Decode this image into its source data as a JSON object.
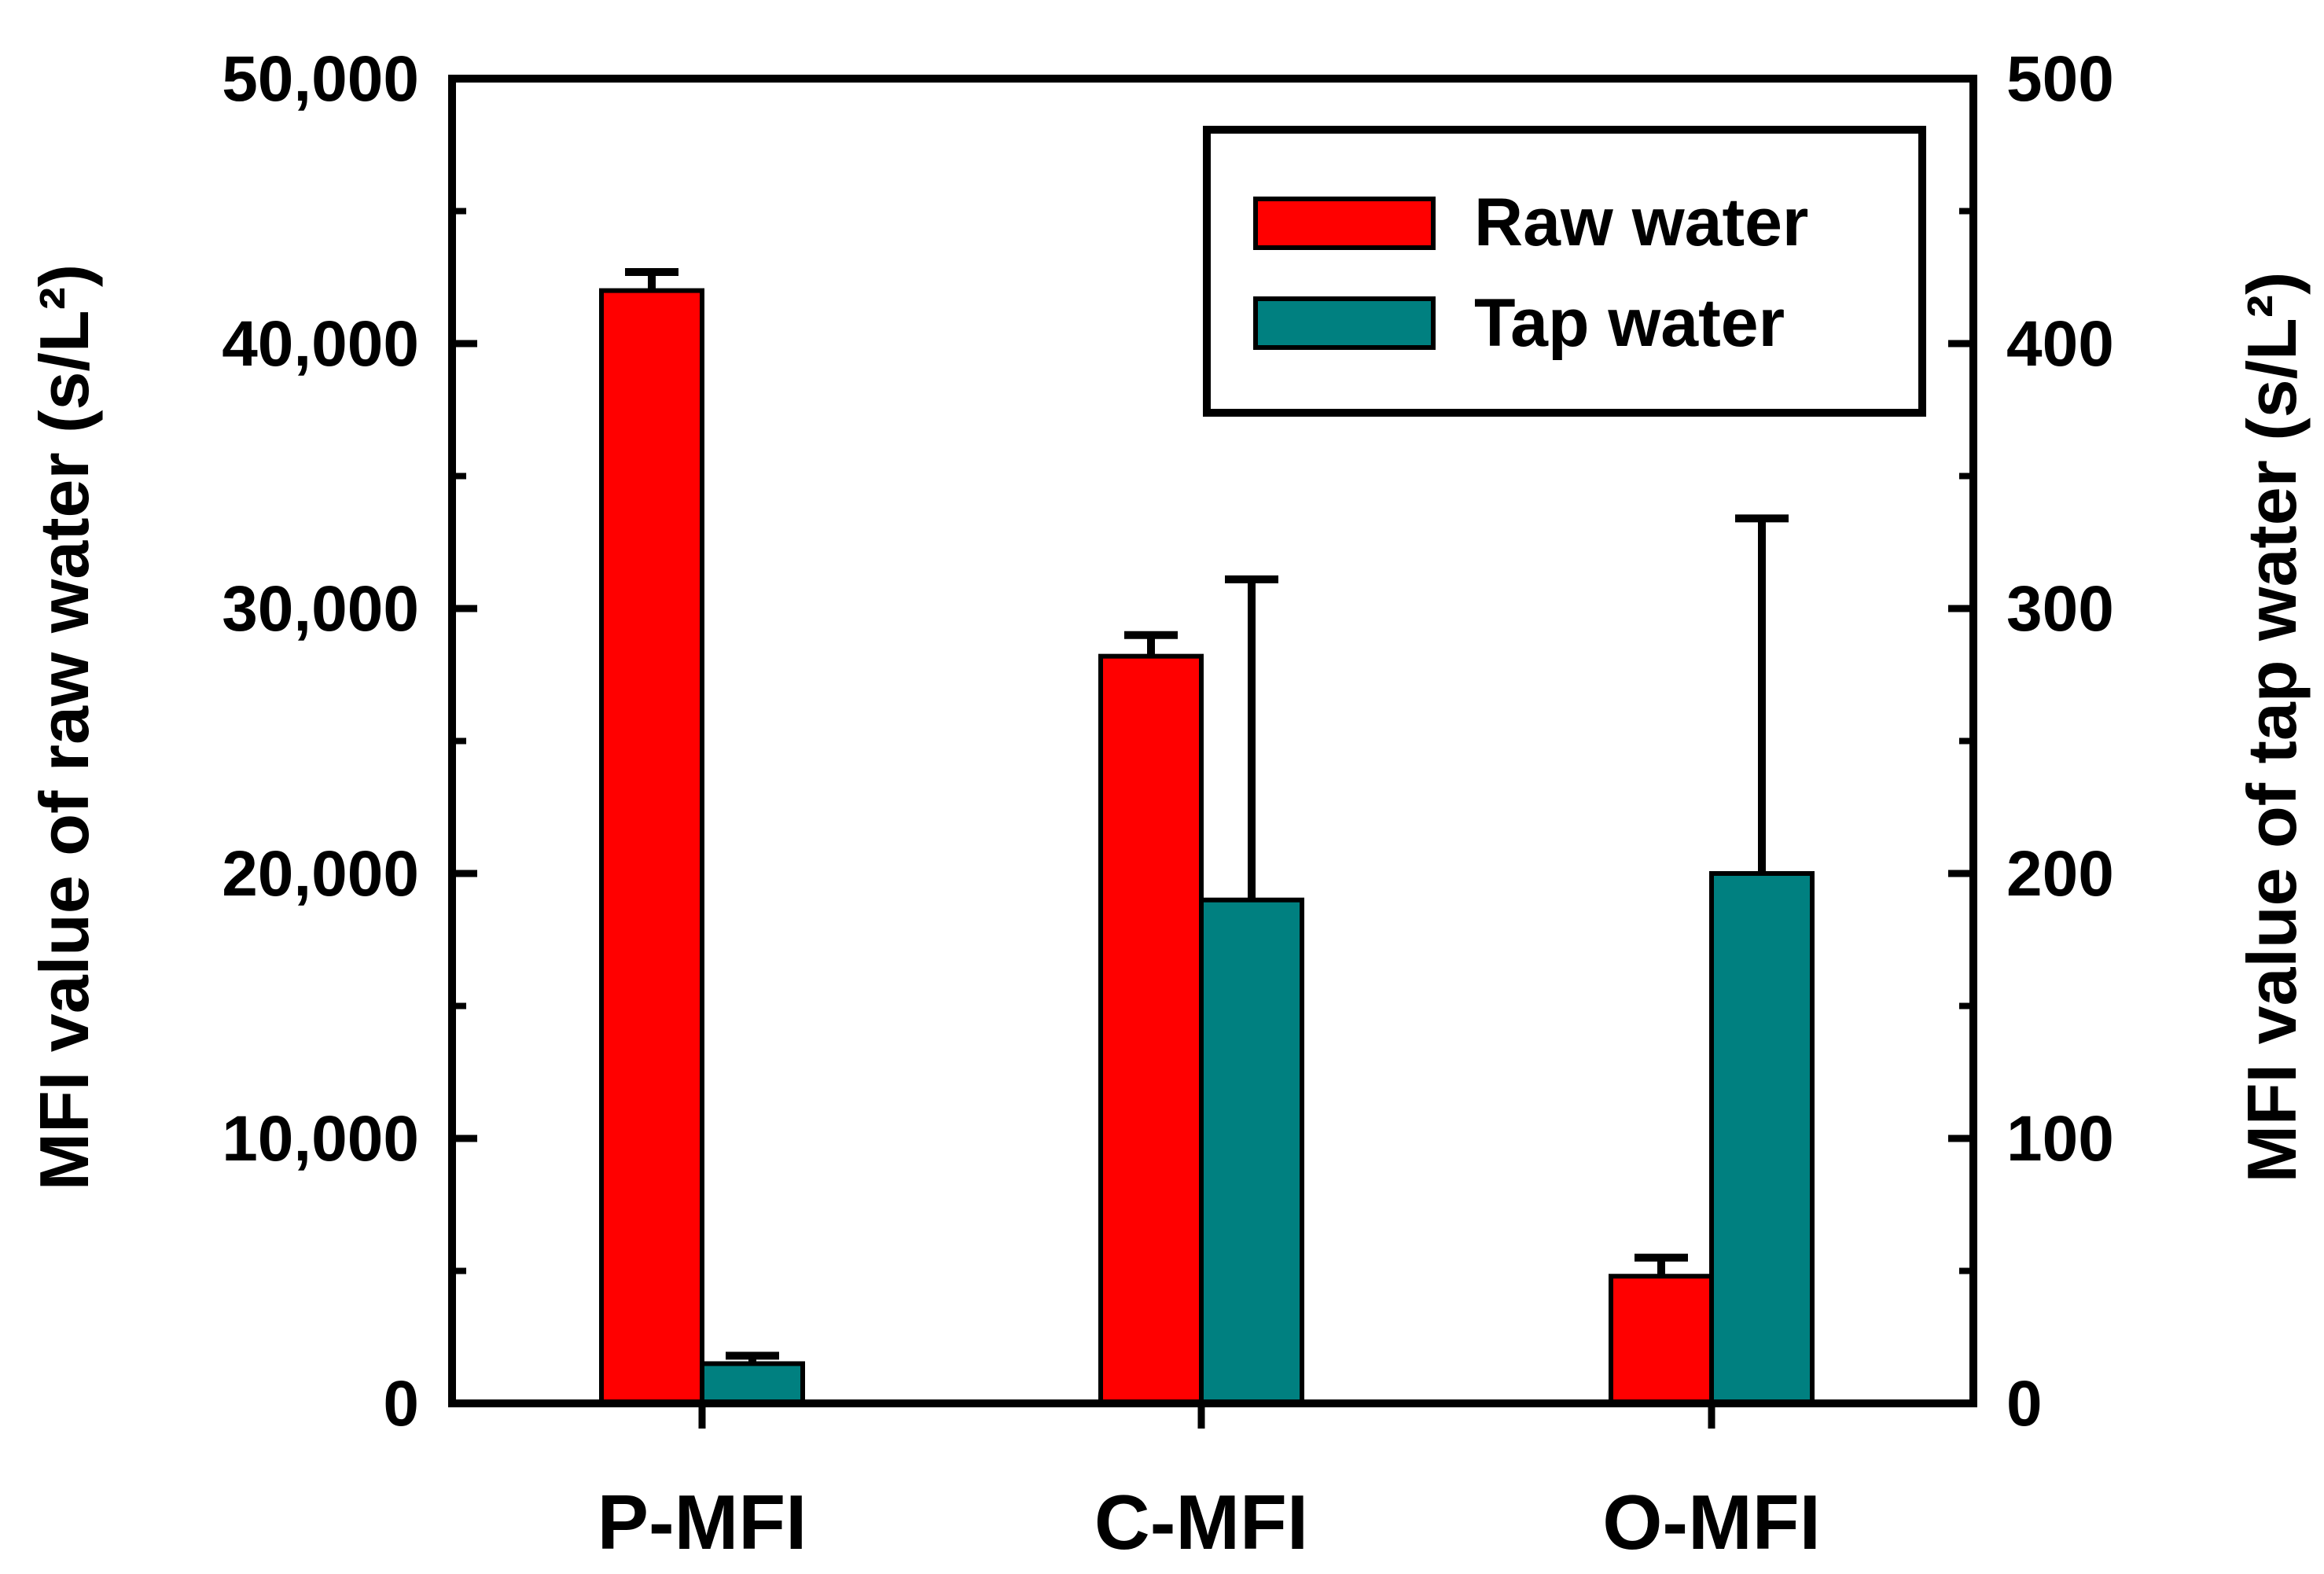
{
  "chart_data": {
    "type": "bar",
    "categories": [
      "P-MFI",
      "C-MFI",
      "O-MFI"
    ],
    "series": [
      {
        "name": "Raw water",
        "axis": "left",
        "color": "#ff0000",
        "values": [
          42000,
          28200,
          4800
        ],
        "errors": [
          700,
          800,
          700
        ]
      },
      {
        "name": "Tap water",
        "axis": "right",
        "color": "#008080",
        "values": [
          15,
          190,
          200
        ],
        "errors": [
          3,
          121,
          134
        ]
      }
    ],
    "ylabel_left": "MFI value of raw water (s/L²)",
    "ylabel_right": "MFI value of tap water (s/L²)",
    "ylim_left": [
      0,
      50000
    ],
    "ylim_right": [
      0,
      500
    ],
    "yticks_left": [
      "0",
      "10,000",
      "20,000",
      "30,000",
      "40,000",
      "50,000"
    ],
    "yticks_right": [
      "0",
      "100",
      "200",
      "300",
      "400",
      "500"
    ],
    "legend_position": "top-right",
    "grid": false
  }
}
